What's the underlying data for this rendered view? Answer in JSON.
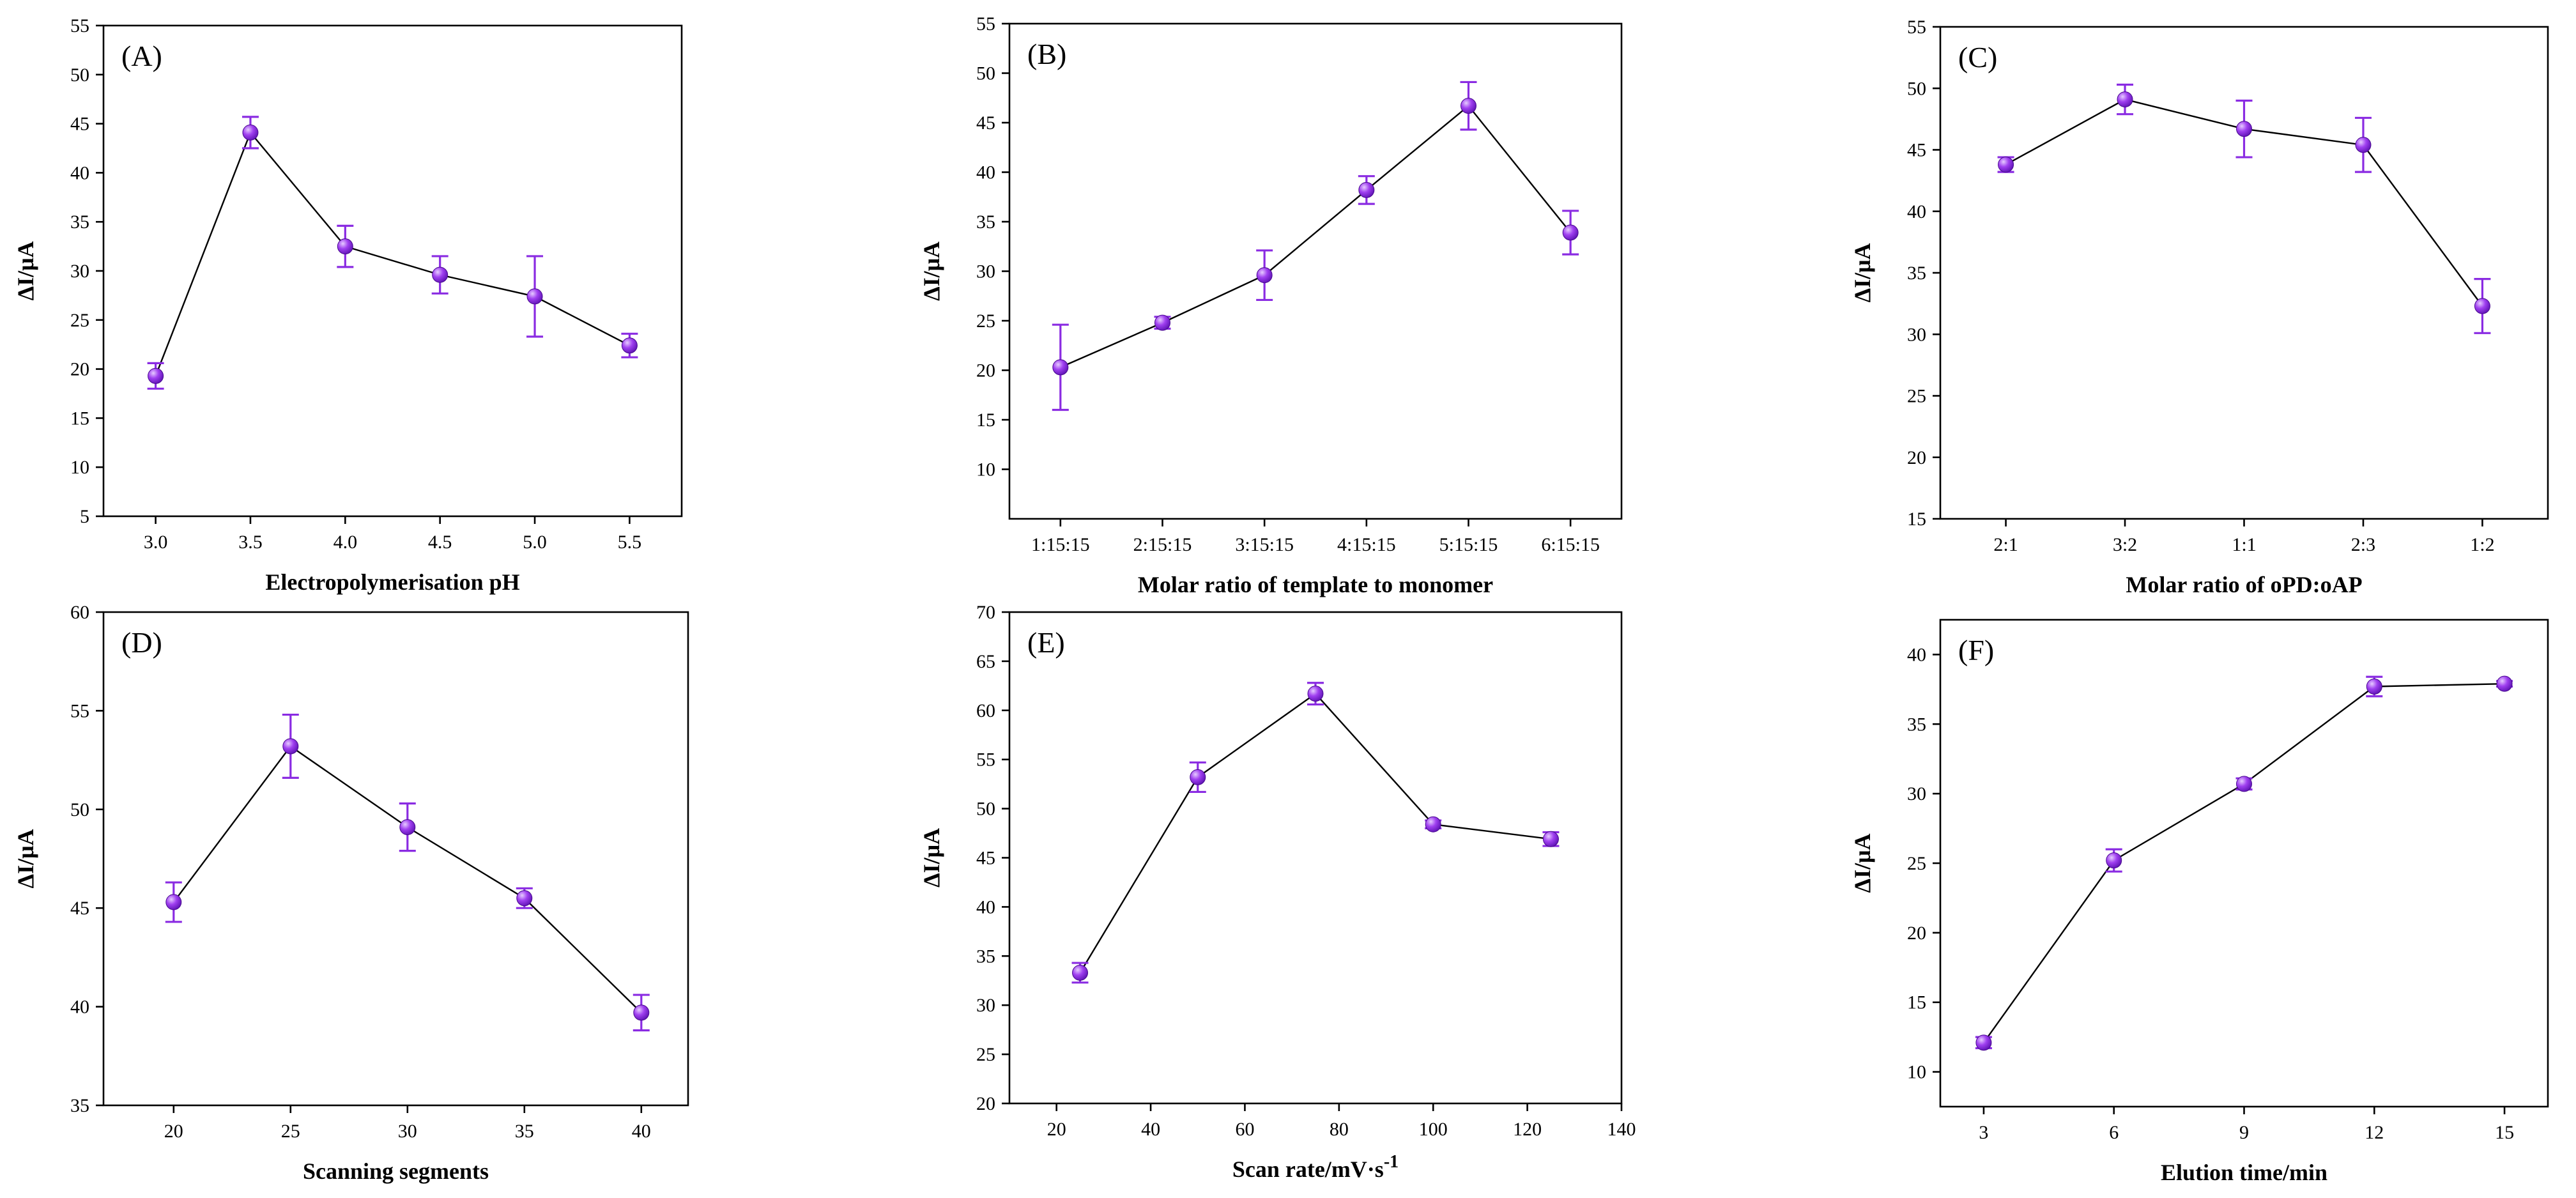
{
  "colors": {
    "marker": "#8a2be2",
    "marker_highlight": "#d9b3ff",
    "line": "#000000",
    "axis": "#000000"
  },
  "chart_data": [
    {
      "type": "line",
      "panel_label": "(A)",
      "xlabel": "Electropolymerisation pH",
      "ylabel": "ΔI/μA",
      "categories": [
        "3.0",
        "3.5",
        "4.0",
        "4.5",
        "5.0",
        "5.5"
      ],
      "values": [
        19.3,
        44.1,
        32.5,
        29.6,
        27.4,
        22.4
      ],
      "errors": [
        1.3,
        1.6,
        2.1,
        1.9,
        4.1,
        1.2
      ],
      "ylim": [
        5,
        55
      ],
      "yticks": [
        5,
        10,
        15,
        20,
        25,
        30,
        35,
        40,
        45,
        50,
        55
      ]
    },
    {
      "type": "line",
      "panel_label": "(B)",
      "xlabel": "Molar ratio of template to monomer",
      "ylabel": "ΔI/μA",
      "categories": [
        "1:15:15",
        "2:15:15",
        "3:15:15",
        "4:15:15",
        "5:15:15",
        "6:15:15"
      ],
      "values": [
        20.3,
        24.8,
        29.6,
        38.2,
        46.7,
        33.9
      ],
      "errors": [
        4.3,
        0.6,
        2.5,
        1.4,
        2.4,
        2.2
      ],
      "ylim": [
        5,
        55
      ],
      "yticks": [
        10,
        15,
        20,
        25,
        30,
        35,
        40,
        45,
        50,
        55
      ]
    },
    {
      "type": "line",
      "panel_label": "(C)",
      "xlabel": "Molar ratio of oPD:oAP",
      "ylabel": "ΔI/μA",
      "categories": [
        "2:1",
        "3:2",
        "1:1",
        "2:3",
        "1:2"
      ],
      "values": [
        43.8,
        49.1,
        46.7,
        45.4,
        32.3
      ],
      "errors": [
        0.6,
        1.2,
        2.3,
        2.2,
        2.2
      ],
      "ylim": [
        15,
        55
      ],
      "yticks": [
        15,
        20,
        25,
        30,
        35,
        40,
        45,
        50,
        55
      ]
    },
    {
      "type": "line",
      "panel_label": "(D)",
      "xlabel": "Scanning segments",
      "ylabel": "ΔI/μA",
      "x": [
        20,
        25,
        30,
        35,
        40
      ],
      "values": [
        45.3,
        53.2,
        49.1,
        45.5,
        39.7
      ],
      "errors": [
        1.0,
        1.6,
        1.2,
        0.5,
        0.9
      ],
      "xlim": [
        17,
        42
      ],
      "xticks": [
        20,
        25,
        30,
        35,
        40
      ],
      "ylim": [
        35,
        60
      ],
      "yticks": [
        35,
        40,
        45,
        50,
        55,
        60
      ]
    },
    {
      "type": "line",
      "panel_label": "(E)",
      "xlabel_main": "Scan rate/mV·s",
      "xlabel_sup": "-1",
      "ylabel": "ΔI/μA",
      "x": [
        25,
        50,
        75,
        100,
        125
      ],
      "values": [
        33.3,
        53.2,
        61.7,
        48.4,
        46.9
      ],
      "errors": [
        1.0,
        1.5,
        1.1,
        0.4,
        0.7
      ],
      "xlim": [
        10,
        140
      ],
      "xticks": [
        20,
        40,
        60,
        80,
        100,
        120,
        140
      ],
      "ylim": [
        20,
        70
      ],
      "yticks": [
        20,
        25,
        30,
        35,
        40,
        45,
        50,
        55,
        60,
        65,
        70
      ]
    },
    {
      "type": "line",
      "panel_label": "(F)",
      "xlabel": "Elution time/min",
      "ylabel": "ΔI/μA",
      "x": [
        3,
        6,
        9,
        12,
        15
      ],
      "values": [
        12.1,
        25.2,
        30.7,
        37.7,
        37.9
      ],
      "errors": [
        0.4,
        0.8,
        0.4,
        0.7,
        0.2
      ],
      "xlim": [
        2,
        16
      ],
      "xticks": [
        3,
        6,
        9,
        12,
        15
      ],
      "ylim": [
        7.5,
        42.5
      ],
      "yticks": [
        10,
        15,
        20,
        25,
        30,
        35,
        40
      ]
    }
  ]
}
